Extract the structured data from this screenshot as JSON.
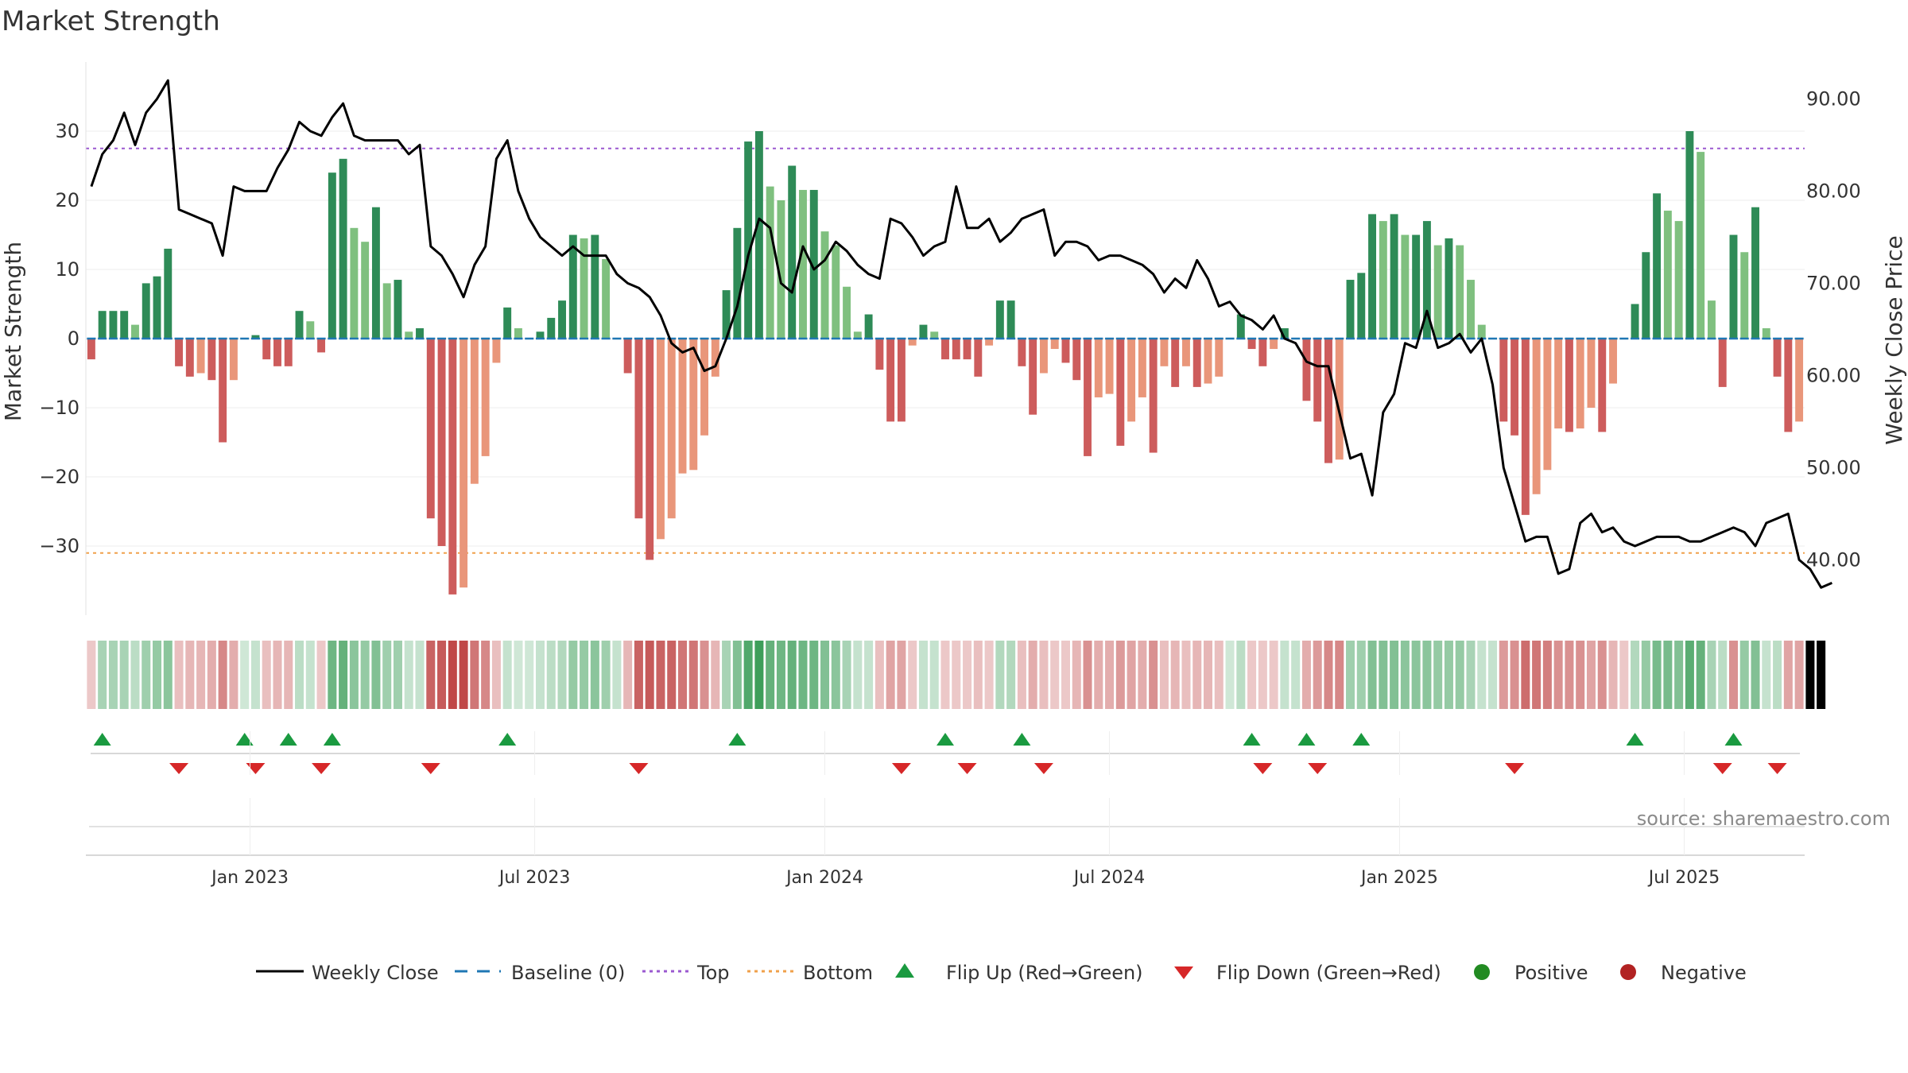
{
  "title": "Market Strength",
  "source": "source: sharemaestro.com",
  "colors": {
    "green_dark": "#2e8b57",
    "green_light": "#7fc07f",
    "red_dark": "#cd5c5c",
    "red_light": "#e9967a",
    "line": "#000000",
    "baseline": "#1f77b4",
    "top": "#9b59d0",
    "bottom": "#f0a04b",
    "flip_up": "#1a9a40",
    "flip_down": "#d62728",
    "positive": "#228b22",
    "negative": "#b22222"
  },
  "chart_data": {
    "type": "bar",
    "title": "Market Strength",
    "ylabel": "Market Strength",
    "y2label": "Weekly Close Price",
    "ylim": [
      -40,
      40
    ],
    "y2lim": [
      34,
      94
    ],
    "yticks": [
      "30",
      "20",
      "10",
      "0",
      "−10",
      "−20",
      "−30"
    ],
    "y_tick_values": [
      30,
      20,
      10,
      0,
      -10,
      -20,
      -30
    ],
    "y2ticks": [
      "90.00",
      "80.00",
      "70.00",
      "60.00",
      "50.00",
      "40.00"
    ],
    "y2_tick_values": [
      90,
      80,
      70,
      60,
      50,
      40
    ],
    "xticks": [
      "Jan 2023",
      "Jul 2023",
      "Jan 2024",
      "Jul 2024",
      "Jan 2025",
      "Jul 2025"
    ],
    "x_tick_weeks": [
      15,
      41,
      67.5,
      93.5,
      120,
      146
    ],
    "top_threshold": 27.5,
    "bottom_threshold": -31,
    "bar_values": [
      -3,
      4,
      4,
      4,
      2,
      8,
      9,
      13,
      -4,
      -5.5,
      -5,
      -6,
      -15,
      -6,
      0,
      0.5,
      -3,
      -4,
      -4,
      4,
      2.5,
      -2,
      24,
      26,
      16,
      14,
      19,
      8,
      8.5,
      1,
      1.5,
      -26,
      -30,
      -37,
      -36,
      -21,
      -17,
      -3.5,
      4.5,
      1.5,
      0,
      1,
      3,
      5.5,
      15,
      14.5,
      15,
      11.5,
      0,
      -5,
      -26,
      -32,
      -29,
      -26,
      -19.5,
      -19,
      -14,
      -5.5,
      7,
      16,
      28.5,
      30,
      22,
      20,
      25,
      21.5,
      21.5,
      15.5,
      13.5,
      7.5,
      1,
      3.5,
      -4.5,
      -12,
      -12,
      -1,
      2,
      1,
      -3,
      -3,
      -3,
      -5.5,
      -1,
      5.5,
      5.5,
      -4,
      -11,
      -5,
      -1.5,
      -3.5,
      -6,
      -17,
      -8.5,
      -8,
      -15.5,
      -12,
      -8.5,
      -16.5,
      -4,
      -7,
      -4,
      -7,
      -6.5,
      -5.5,
      0,
      3.5,
      -1.5,
      -4,
      -1.5,
      1.5,
      0,
      -9,
      -12,
      -18,
      -17.5,
      8.5,
      9.5,
      18,
      17,
      18,
      15,
      15,
      17,
      13.5,
      14.5,
      13.5,
      8.5,
      2,
      0,
      -12,
      -14,
      -25.5,
      -22.5,
      -19,
      -13,
      -13.5,
      -13,
      -10,
      -13.5,
      -6.5,
      0,
      5,
      12.5,
      21,
      18.5,
      17,
      30,
      27,
      5.5,
      -7,
      15,
      12.5,
      19,
      1.5,
      -5.5,
      -13.5,
      -12
    ],
    "close_values": [
      80.5,
      84,
      85.5,
      88.5,
      85,
      88.5,
      90,
      92,
      78,
      77.5,
      77,
      76.5,
      73,
      80.5,
      80,
      80,
      80,
      82.5,
      84.5,
      87.5,
      86.5,
      86,
      88,
      89.5,
      86,
      85.5,
      85.5,
      85.5,
      85.5,
      84,
      85,
      74,
      73,
      71,
      68.5,
      72,
      74,
      83.5,
      85.5,
      80,
      77,
      75,
      74,
      73,
      74,
      73,
      73,
      73,
      71,
      70,
      69.5,
      68.5,
      66.5,
      63.5,
      62.5,
      63,
      60.5,
      61,
      64,
      67.5,
      73,
      77,
      76,
      70,
      69,
      74,
      71.5,
      72.5,
      74.5,
      73.5,
      72,
      71,
      70.5,
      77,
      76.5,
      75,
      73,
      74,
      74.5,
      80.5,
      76,
      76,
      77,
      74.5,
      75.5,
      77,
      77.5,
      78,
      73,
      74.5,
      74.5,
      74,
      72.5,
      73,
      73,
      72.5,
      72,
      71,
      69,
      70.5,
      69.5,
      72.5,
      70.5,
      67.5,
      68,
      66.5,
      66,
      65,
      66.5,
      64,
      63.5,
      61.5,
      61,
      61,
      56,
      51,
      51.5,
      47,
      56,
      58,
      63.5,
      63,
      67,
      63,
      63.5,
      64.5,
      62.5,
      64,
      59,
      50,
      46,
      42,
      42.5,
      42.5,
      38.5,
      39,
      44,
      45,
      43,
      43.5,
      42,
      41.5,
      42,
      42.5,
      42.5,
      42.5,
      42,
      42,
      42.5,
      43,
      43.5,
      43,
      41.5,
      44,
      44.5,
      45,
      40,
      39,
      37,
      37.5
    ],
    "strip_states": [
      "N",
      "P",
      "P",
      "P",
      "P",
      "P",
      "P",
      "P",
      "N",
      "N",
      "N",
      "N",
      "N",
      "N",
      "P",
      "P",
      "N",
      "N",
      "N",
      "P",
      "P",
      "N",
      "P",
      "P",
      "P",
      "P",
      "P",
      "P",
      "P",
      "P",
      "P",
      "N",
      "N",
      "N",
      "N",
      "N",
      "N",
      "N",
      "P",
      "P",
      "P",
      "P",
      "P",
      "P",
      "P",
      "P",
      "P",
      "P",
      "P",
      "N",
      "N",
      "N",
      "N",
      "N",
      "N",
      "N",
      "N",
      "N",
      "P",
      "P",
      "P",
      "P",
      "P",
      "P",
      "P",
      "P",
      "P",
      "P",
      "P",
      "P",
      "P",
      "P",
      "N",
      "N",
      "N",
      "N",
      "P",
      "P",
      "N",
      "N",
      "N",
      "N",
      "N",
      "P",
      "P",
      "N",
      "N",
      "N",
      "N",
      "N",
      "N",
      "N",
      "N",
      "N",
      "N",
      "N",
      "N",
      "N",
      "N",
      "N",
      "N",
      "N",
      "N",
      "N",
      "P",
      "P",
      "N",
      "N",
      "N",
      "P",
      "P",
      "N",
      "N",
      "N",
      "N",
      "P",
      "P",
      "P",
      "P",
      "P",
      "P",
      "P",
      "P",
      "P",
      "P",
      "P",
      "P",
      "P",
      "P",
      "N",
      "N",
      "N",
      "N",
      "N",
      "N",
      "N",
      "N",
      "N",
      "N",
      "N",
      "N",
      "P",
      "P",
      "P",
      "P",
      "P",
      "P",
      "P",
      "P",
      "P",
      "N",
      "P",
      "P",
      "P",
      "P",
      "N",
      "N",
      "N",
      "N"
    ],
    "strip_intensity": [
      0.3,
      0.45,
      0.45,
      0.45,
      0.35,
      0.5,
      0.55,
      0.6,
      0.35,
      0.4,
      0.4,
      0.45,
      0.65,
      0.45,
      0.25,
      0.3,
      0.35,
      0.4,
      0.4,
      0.35,
      0.3,
      0.3,
      0.75,
      0.8,
      0.6,
      0.55,
      0.65,
      0.5,
      0.5,
      0.3,
      0.3,
      0.85,
      0.9,
      1,
      1,
      0.75,
      0.65,
      0.35,
      0.3,
      0.25,
      0.25,
      0.3,
      0.35,
      0.4,
      0.55,
      0.55,
      0.6,
      0.5,
      0.3,
      0.4,
      0.85,
      0.9,
      0.85,
      0.85,
      0.75,
      0.75,
      0.6,
      0.4,
      0.45,
      0.65,
      0.9,
      1,
      0.8,
      0.75,
      0.8,
      0.75,
      0.75,
      0.65,
      0.6,
      0.45,
      0.3,
      0.3,
      0.35,
      0.5,
      0.5,
      0.3,
      0.3,
      0.3,
      0.3,
      0.3,
      0.3,
      0.35,
      0.3,
      0.4,
      0.4,
      0.35,
      0.45,
      0.35,
      0.3,
      0.3,
      0.4,
      0.6,
      0.45,
      0.45,
      0.55,
      0.5,
      0.45,
      0.6,
      0.35,
      0.4,
      0.35,
      0.4,
      0.4,
      0.35,
      0.25,
      0.35,
      0.3,
      0.3,
      0.3,
      0.3,
      0.3,
      0.45,
      0.55,
      0.65,
      0.65,
      0.5,
      0.5,
      0.65,
      0.65,
      0.65,
      0.6,
      0.6,
      0.6,
      0.55,
      0.55,
      0.55,
      0.45,
      0.3,
      0.3,
      0.55,
      0.6,
      0.8,
      0.75,
      0.7,
      0.6,
      0.6,
      0.6,
      0.5,
      0.6,
      0.4,
      0.3,
      0.4,
      0.55,
      0.7,
      0.7,
      0.65,
      0.85,
      0.8,
      0.45,
      0.35,
      0.6,
      0.55,
      0.65,
      0.3,
      0.35,
      0.5,
      0.5
    ],
    "flip_up_weeks": [
      1,
      14,
      18,
      22,
      38,
      59,
      78,
      85,
      106,
      111,
      116,
      141,
      150
    ],
    "flip_down_weeks": [
      8,
      15,
      21,
      31,
      50,
      74,
      80,
      87,
      107,
      112,
      130,
      149,
      154
    ],
    "legend": [
      "Weekly Close",
      "Baseline (0)",
      "Top",
      "Bottom",
      "Flip Up (Red→Green)",
      "Flip Down (Green→Red)",
      "Positive",
      "Negative"
    ]
  }
}
